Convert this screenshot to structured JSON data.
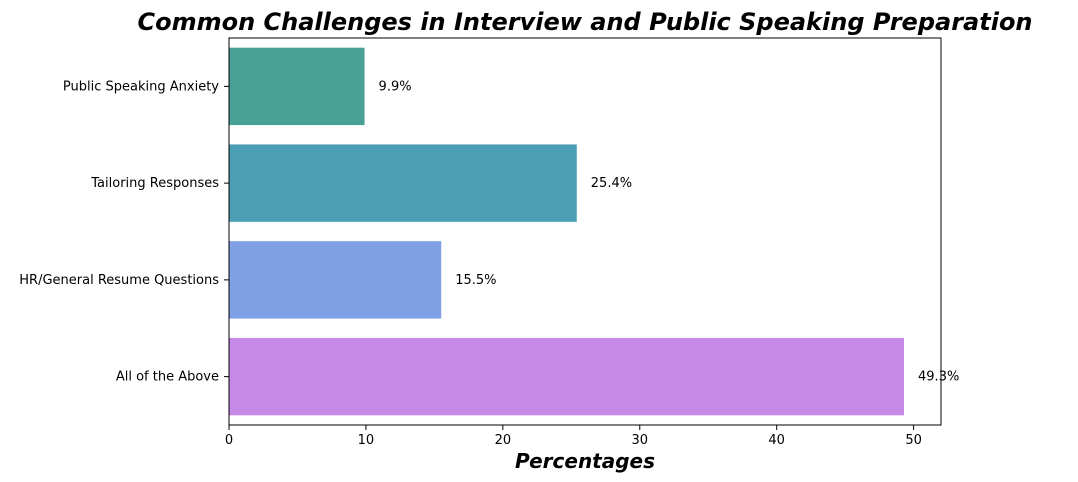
{
  "chart_data": {
    "type": "bar",
    "orientation": "horizontal",
    "title": "Common Challenges in Interview and Public Speaking Preparation",
    "xlabel": "Percentages",
    "ylabel": "",
    "categories": [
      "Public Speaking Anxiety",
      "Tailoring Responses",
      "HR/General Resume Questions",
      "All of the Above"
    ],
    "values": [
      9.9,
      25.4,
      15.5,
      49.3
    ],
    "data_labels": [
      "9.9%",
      "25.4%",
      "15.5%",
      "49.3%"
    ],
    "colors": [
      "#48a097",
      "#4a9fb5",
      "#80a0e6",
      "#c689e6"
    ],
    "xlim": [
      0,
      52
    ],
    "xticks": [
      0,
      10,
      20,
      30,
      40,
      50
    ],
    "grid": false,
    "legend": "none"
  }
}
